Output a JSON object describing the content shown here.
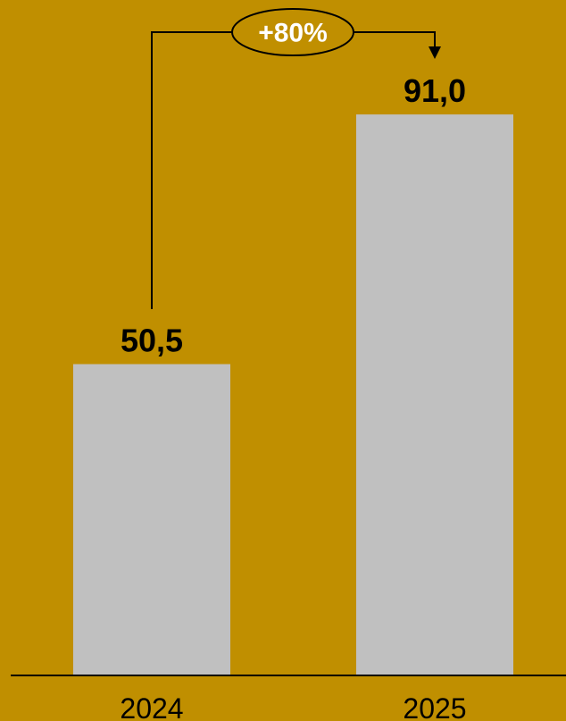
{
  "chart_data": {
    "type": "bar",
    "categories": [
      "2024",
      "2025"
    ],
    "values": [
      50.5,
      91.0
    ],
    "value_labels": [
      "50,5",
      "91,0"
    ],
    "ylim": [
      0,
      100
    ],
    "grid": false,
    "annotation": {
      "text": "+80%",
      "from_category": "2024",
      "to_category": "2025"
    }
  },
  "colors": {
    "background": "#C08F00",
    "bar": "#C0C0C0",
    "axis": "#000000",
    "text": "#000000",
    "annotation_text": "#FFFFFF"
  }
}
